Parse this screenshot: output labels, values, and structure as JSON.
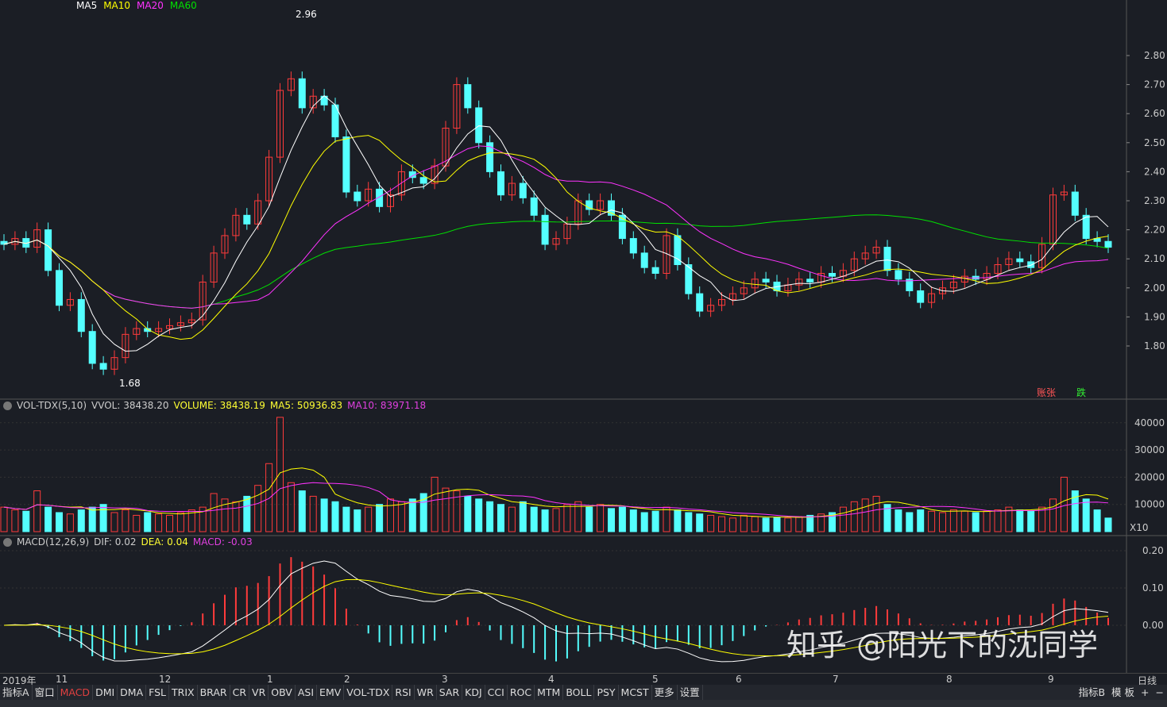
{
  "price_panel": {
    "high_label": "2.96",
    "low_label": "1.68",
    "markers": {
      "rise": "账张",
      "fall": "跌"
    }
  },
  "volume_panel": {
    "name": "VOL-TDX(5,10)",
    "vvol": "VVOL: 38438.20",
    "volume": "VOLUME: 38438.19",
    "ma5": "MA5: 50936.83",
    "ma10": "MA10: 83971.18",
    "unit": "X10"
  },
  "macd_panel": {
    "name": "MACD(12,26,9)",
    "dif": "DIF: 0.02",
    "dea": "DEA: 0.04",
    "macd": "MACD: -0.03"
  },
  "date_axis": {
    "year": "2019年",
    "months": [
      "11",
      "12",
      "1",
      "2",
      "3",
      "4",
      "5",
      "6",
      "7",
      "8",
      "9"
    ],
    "period": "日线"
  },
  "indicator_tabs": [
    "指标A",
    "窗口",
    "MACD",
    "DMI",
    "DMA",
    "FSL",
    "TRIX",
    "BRAR",
    "CR",
    "VR",
    "OBV",
    "ASI",
    "EMV",
    "VOL-TDX",
    "RSI",
    "WR",
    "SAR",
    "KDJ",
    "CCI",
    "ROC",
    "MTM",
    "BOLL",
    "PSY",
    "MCST",
    "更多",
    "设置"
  ],
  "active_tab": "MACD",
  "right_tabs": [
    "指标B",
    "模 板",
    "+",
    "−"
  ],
  "watermark": "知乎 @阳光下的沈同学",
  "colors": {
    "background": "#1b1e25",
    "up": "#ff3b3b",
    "down": "#54ffff",
    "ma5": "#ffffff",
    "ma10": "#ffff00",
    "ma20": "#ff33ff",
    "ma60": "#00e000"
  },
  "chart_data": [
    {
      "type": "candlestick",
      "ylim": [
        1.6,
        3.0
      ],
      "yticks": [
        "2.80",
        "2.70",
        "2.60",
        "2.50",
        "2.40",
        "2.30",
        "2.20",
        "2.10",
        "2.00",
        "1.90",
        "1.80"
      ],
      "close": [
        2.15,
        2.17,
        2.14,
        2.2,
        2.06,
        1.94,
        1.96,
        1.85,
        1.74,
        1.72,
        1.76,
        1.84,
        1.86,
        1.85,
        1.86,
        1.87,
        1.88,
        1.89,
        2.02,
        2.12,
        2.18,
        2.25,
        2.22,
        2.3,
        2.45,
        2.68,
        2.72,
        2.62,
        2.66,
        2.63,
        2.52,
        2.33,
        2.3,
        2.34,
        2.28,
        2.32,
        2.4,
        2.38,
        2.36,
        2.42,
        2.55,
        2.7,
        2.62,
        2.5,
        2.4,
        2.32,
        2.36,
        2.31,
        2.25,
        2.15,
        2.17,
        2.22,
        2.3,
        2.27,
        2.3,
        2.25,
        2.17,
        2.12,
        2.07,
        2.05,
        2.18,
        2.08,
        1.98,
        1.92,
        1.94,
        1.96,
        1.98,
        2.0,
        2.03,
        2.02,
        1.99,
        2.01,
        2.03,
        2.02,
        2.05,
        2.04,
        2.06,
        2.1,
        2.12,
        2.14,
        2.06,
        2.03,
        1.99,
        1.95,
        1.98,
        2.0,
        2.02,
        2.04,
        2.03,
        2.05,
        2.08,
        2.1,
        2.09,
        2.07,
        2.15,
        2.32,
        2.33,
        2.25,
        2.17,
        2.16,
        2.14
      ],
      "moving_averages": [
        "MA5",
        "MA10",
        "MA20",
        "MA60"
      ]
    },
    {
      "type": "bar",
      "name": "VOLUME",
      "ylim": [
        0,
        48000
      ],
      "yticks": [
        "40000",
        "30000",
        "20000",
        "10000"
      ],
      "values": [
        9000,
        8000,
        7500,
        15000,
        9000,
        7000,
        6500,
        8000,
        9000,
        10000,
        7000,
        8000,
        6000,
        7000,
        6500,
        6000,
        7000,
        8000,
        9000,
        14000,
        12000,
        11000,
        13000,
        17000,
        25000,
        42000,
        18000,
        15000,
        13000,
        12000,
        11000,
        9000,
        8000,
        9000,
        10000,
        12000,
        11000,
        12000,
        14000,
        20000,
        16000,
        15000,
        13000,
        12000,
        11000,
        10000,
        9000,
        11000,
        9000,
        8000,
        8500,
        10000,
        11000,
        9000,
        10000,
        8500,
        9000,
        8000,
        7000,
        7500,
        9000,
        8000,
        7000,
        6500,
        6000,
        5500,
        5000,
        6000,
        5500,
        5000,
        5200,
        5000,
        5500,
        6000,
        6500,
        7000,
        9000,
        11000,
        12000,
        13000,
        10000,
        8000,
        7000,
        8000,
        7500,
        7000,
        8000,
        7500,
        7000,
        7500,
        8000,
        9000,
        8000,
        7500,
        9000,
        12000,
        20000,
        15000,
        12000,
        8000,
        5000
      ]
    },
    {
      "type": "line",
      "name": "MACD",
      "ylim": [
        -0.12,
        0.24
      ],
      "yticks": [
        "0.20",
        "0.10",
        "0.00"
      ]
    }
  ]
}
